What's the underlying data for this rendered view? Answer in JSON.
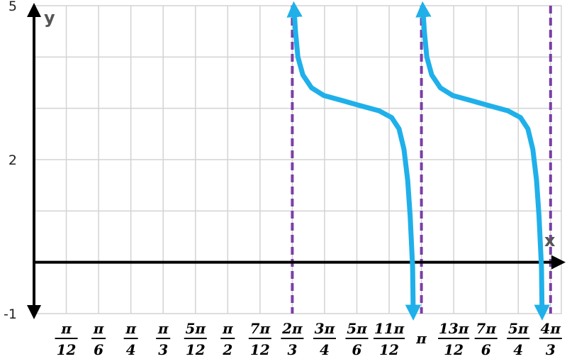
{
  "chart_data": {
    "type": "line",
    "title": "",
    "xlabel": "x",
    "ylabel": "y",
    "xlim": [
      0,
      4.2761
    ],
    "ylim": [
      -1,
      5
    ],
    "grid": true,
    "y_tick_labels": [
      {
        "value": 5,
        "label": "5"
      },
      {
        "value": 2,
        "label": "2"
      },
      {
        "value": -1,
        "label": "-1"
      }
    ],
    "x_tick_labels": [
      {
        "value": 0.2618,
        "num": "π",
        "den": "12"
      },
      {
        "value": 0.5236,
        "num": "π",
        "den": "6"
      },
      {
        "value": 0.7854,
        "num": "π",
        "den": "4"
      },
      {
        "value": 1.0472,
        "num": "π",
        "den": "3"
      },
      {
        "value": 1.309,
        "num": "5π",
        "den": "12"
      },
      {
        "value": 1.5708,
        "num": "π",
        "den": "2"
      },
      {
        "value": 1.8326,
        "num": "7π",
        "den": "12"
      },
      {
        "value": 2.0944,
        "num": "2π",
        "den": "3"
      },
      {
        "value": 2.3562,
        "num": "3π",
        "den": "4"
      },
      {
        "value": 2.618,
        "num": "5π",
        "den": "6"
      },
      {
        "value": 2.8798,
        "num": "11π",
        "den": "12"
      },
      {
        "value": 3.1416,
        "num": "π",
        "den": ""
      },
      {
        "value": 3.4034,
        "num": "13π",
        "den": "12"
      },
      {
        "value": 3.6652,
        "num": "7π",
        "den": "6"
      },
      {
        "value": 3.927,
        "num": "5π",
        "den": "4"
      },
      {
        "value": 4.1888,
        "num": "4π",
        "den": "3"
      }
    ],
    "asymptotes_x": [
      2.0944,
      3.1416,
      4.1888
    ],
    "series": [
      {
        "points": [
          [
            2.11,
            4.9
          ],
          [
            2.12,
            4.5
          ],
          [
            2.14,
            4.0
          ],
          [
            2.18,
            3.65
          ],
          [
            2.25,
            3.4
          ],
          [
            2.35,
            3.25
          ],
          [
            2.5,
            3.15
          ],
          [
            2.65,
            3.05
          ],
          [
            2.8,
            2.95
          ],
          [
            2.9,
            2.82
          ],
          [
            2.96,
            2.6
          ],
          [
            3.0,
            2.2
          ],
          [
            3.03,
            1.6
          ],
          [
            3.05,
            0.9
          ],
          [
            3.07,
            -0.1
          ],
          [
            3.075,
            -0.95
          ]
        ]
      },
      {
        "points": [
          [
            3.155,
            4.9
          ],
          [
            3.165,
            4.5
          ],
          [
            3.185,
            4.0
          ],
          [
            3.225,
            3.65
          ],
          [
            3.295,
            3.4
          ],
          [
            3.395,
            3.25
          ],
          [
            3.545,
            3.15
          ],
          [
            3.695,
            3.05
          ],
          [
            3.845,
            2.95
          ],
          [
            3.945,
            2.82
          ],
          [
            4.005,
            2.6
          ],
          [
            4.045,
            2.2
          ],
          [
            4.075,
            1.6
          ],
          [
            4.095,
            0.9
          ],
          [
            4.115,
            -0.1
          ],
          [
            4.12,
            -0.95
          ]
        ]
      }
    ],
    "colors": {
      "curve": "#1fb0ea",
      "asymptote": "#7a3fa6",
      "axis": "#000000",
      "grid": "#d3d3d3"
    }
  }
}
